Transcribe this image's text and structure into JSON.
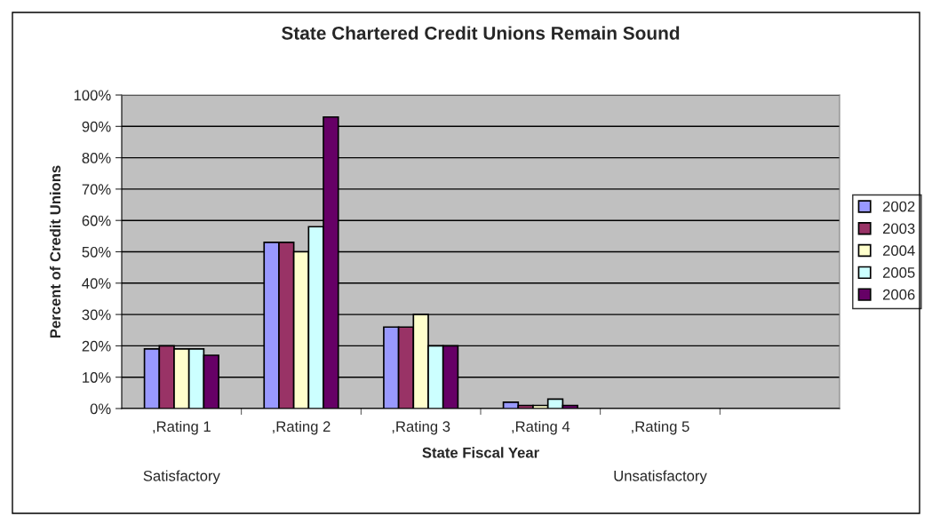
{
  "chart_data": {
    "type": "bar",
    "title": "State Chartered Credit Unions Remain Sound",
    "xlabel": "State Fiscal Year",
    "ylabel": "Percent of Credit Unions",
    "categories": [
      ",Rating 1",
      ",Rating 2",
      ",Rating 3",
      ",Rating 4",
      ",Rating 5",
      null
    ],
    "series": [
      {
        "name": "2002",
        "color": "#9999ff",
        "values": [
          19,
          53,
          26,
          2,
          null,
          null
        ]
      },
      {
        "name": "2003",
        "color": "#993366",
        "values": [
          20,
          53,
          26,
          1,
          null,
          null
        ]
      },
      {
        "name": "2004",
        "color": "#ffffcc",
        "values": [
          19,
          50,
          30,
          1,
          null,
          null
        ]
      },
      {
        "name": "2005",
        "color": "#ccffff",
        "values": [
          19,
          58,
          20,
          3,
          null,
          null
        ]
      },
      {
        "name": "2006",
        "color": "#660066",
        "values": [
          17,
          93,
          20,
          1,
          null,
          null
        ]
      }
    ],
    "ylim": [
      0,
      100
    ],
    "yticks": [
      {
        "value": 0,
        "label": "0%"
      },
      {
        "value": 10,
        "label": "10%"
      },
      {
        "value": 20,
        "label": "20%"
      },
      {
        "value": 30,
        "label": "30%"
      },
      {
        "value": 40,
        "label": "40%"
      },
      {
        "value": 50,
        "label": "50%"
      },
      {
        "value": 60,
        "label": "60%"
      },
      {
        "value": 70,
        "label": "70%"
      },
      {
        "value": 80,
        "label": "80%"
      },
      {
        "value": 90,
        "label": "90%"
      },
      {
        "value": 100,
        "label": "100%"
      }
    ],
    "grid": "y",
    "legend": "right",
    "annotations": [
      "Satisfactory",
      "Unsatisfactory"
    ]
  }
}
